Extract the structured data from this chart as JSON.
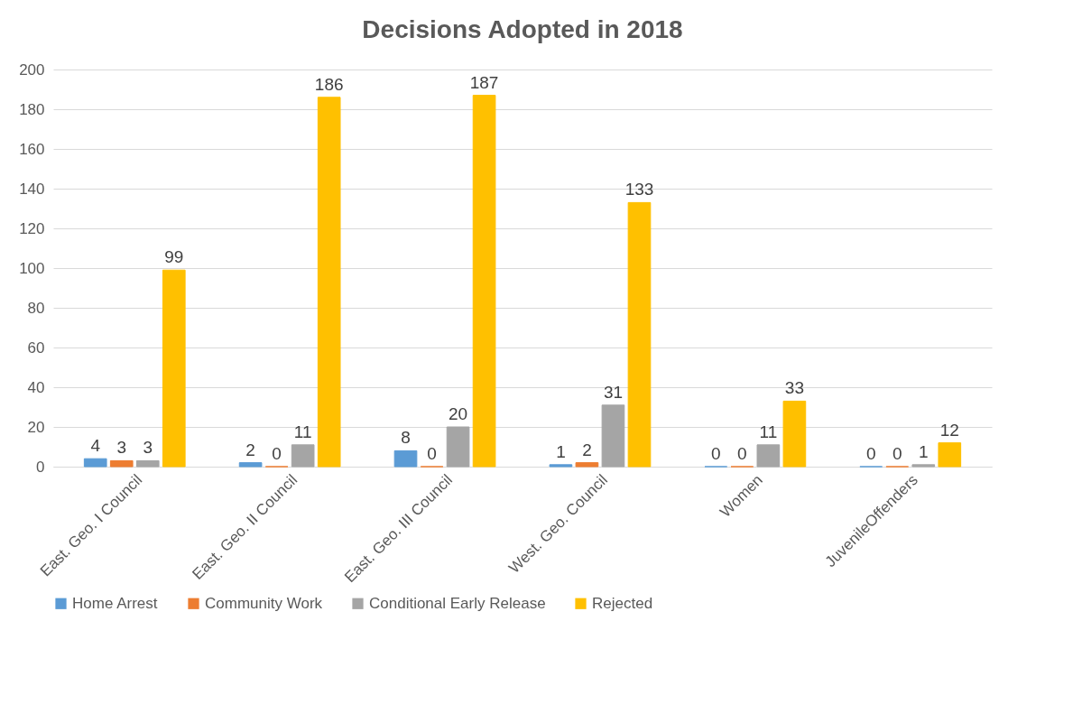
{
  "chart_data": {
    "type": "bar",
    "title": "Decisions Adopted in 2018",
    "categories": [
      "East. Geo. I Council",
      "East. Geo. II Council",
      "East. Geo. III Council",
      "West. Geo. Council",
      "Women",
      "JuvenileOffenders"
    ],
    "series": [
      {
        "name": "Home Arrest",
        "color": "#5b9bd5",
        "values": [
          4,
          2,
          8,
          1,
          0,
          0
        ]
      },
      {
        "name": "Community Work",
        "color": "#ed7d31",
        "values": [
          3,
          0,
          0,
          2,
          0,
          0
        ]
      },
      {
        "name": "Conditional Early Release",
        "color": "#a5a5a5",
        "values": [
          3,
          11,
          20,
          31,
          11,
          1
        ]
      },
      {
        "name": "Rejected",
        "color": "#ffc000",
        "values": [
          99,
          186,
          187,
          133,
          33,
          12
        ]
      }
    ],
    "ylim": [
      0,
      200
    ],
    "yticks": [
      0,
      20,
      40,
      60,
      80,
      100,
      120,
      140,
      160,
      180,
      200
    ],
    "grid": "y",
    "legend": "bottom",
    "data_labels": true
  }
}
